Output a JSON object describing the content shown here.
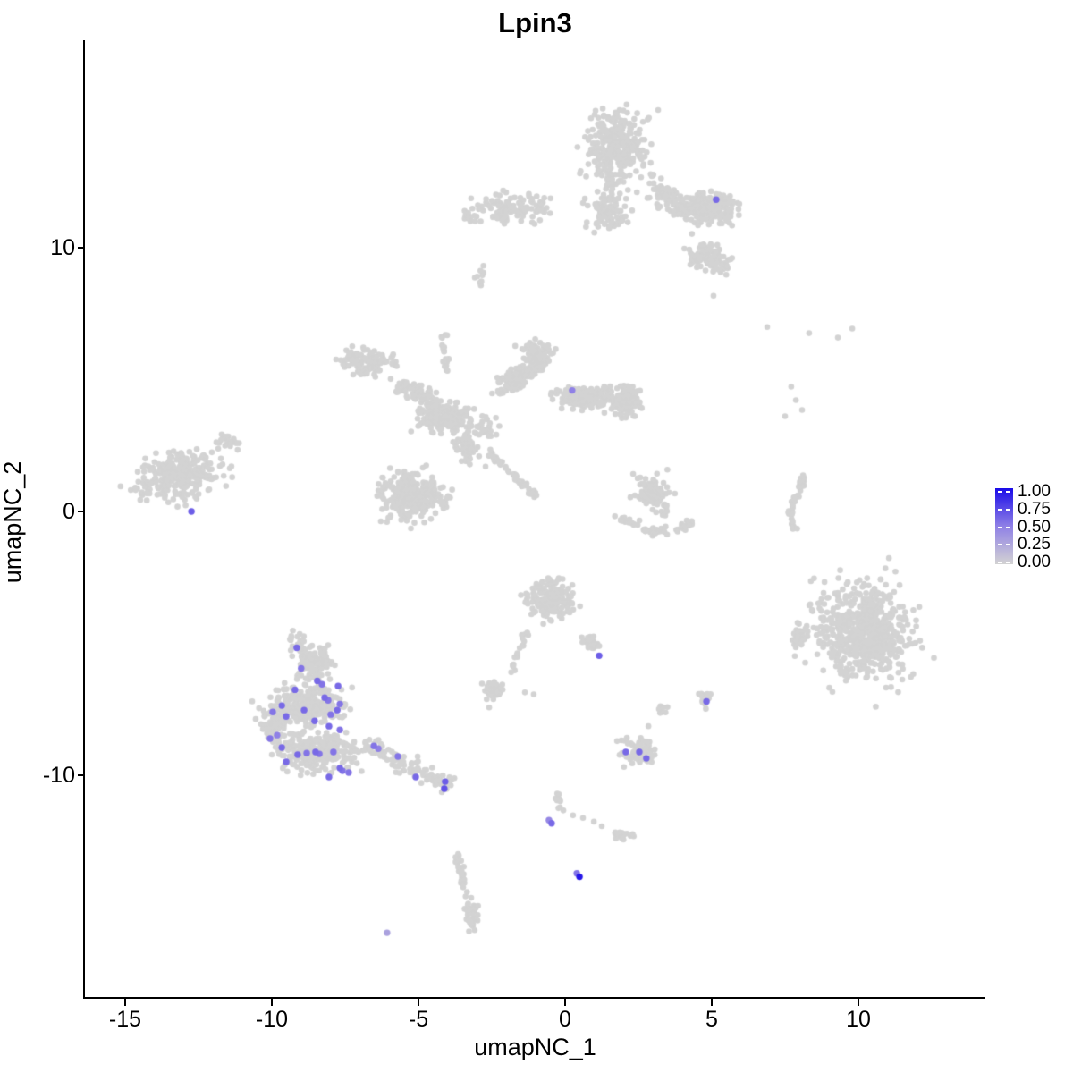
{
  "chart_data": {
    "type": "scatter",
    "title": "Lpin3",
    "xlabel": "umapNC_1",
    "ylabel": "umapNC_2",
    "x_ticks": [
      "-15",
      "-10",
      "-5",
      "0",
      "5",
      "10"
    ],
    "x_tick_values": [
      -15,
      -10,
      -5,
      0,
      5,
      10
    ],
    "y_ticks": [
      "10",
      "0",
      "-10"
    ],
    "y_tick_values": [
      10,
      0,
      -10
    ],
    "xlim": [
      -16.4,
      14.3
    ],
    "ylim": [
      -18.4,
      17.8
    ],
    "grid": false,
    "legend_position": "right",
    "legend": {
      "labels": [
        "1.00",
        "0.75",
        "0.50",
        "0.25",
        "0.00"
      ],
      "values": [
        1.0,
        0.75,
        0.5,
        0.25,
        0.0
      ]
    },
    "colors": {
      "low": "#D3D3D3",
      "mid": "#8F80E6",
      "high": "#1A0BE8",
      "background": "#FFFFFF",
      "axis": "#000000"
    },
    "background_clusters": [
      {
        "cx": 1.77,
        "cy": 13.75,
        "sx": 0.49,
        "sy": 0.68,
        "rot": 0,
        "n": 320
      },
      {
        "cx": 1.46,
        "cy": 11.39,
        "sx": 0.36,
        "sy": 0.34,
        "rot": 0,
        "n": 100
      },
      {
        "cx": -1.74,
        "cy": 11.49,
        "sx": 0.63,
        "sy": 0.29,
        "rot": 0,
        "n": 110
      },
      {
        "cx": -3.23,
        "cy": 11.25,
        "sx": 0.25,
        "sy": 0.2,
        "rot": 0,
        "n": 18
      },
      {
        "cx": 3.75,
        "cy": 11.72,
        "sx": 0.55,
        "sy": 0.22,
        "rot": -35,
        "n": 120
      },
      {
        "cx": 4.97,
        "cy": 11.51,
        "sx": 0.38,
        "sy": 0.28,
        "rot": 0,
        "n": 170
      },
      {
        "cx": 4.91,
        "cy": 9.63,
        "sx": 0.37,
        "sy": 0.27,
        "rot": -25,
        "n": 110
      },
      {
        "cx": -2.87,
        "cy": 8.9,
        "sx": 0.12,
        "sy": 0.2,
        "rot": 0,
        "n": 10
      },
      {
        "cx": -6.77,
        "cy": 5.64,
        "sx": 0.38,
        "sy": 0.26,
        "rot": -15,
        "n": 120
      },
      {
        "cx": -4.94,
        "cy": 4.46,
        "sx": 0.45,
        "sy": 0.18,
        "rot": -28,
        "n": 80
      },
      {
        "cx": -4.18,
        "cy": 3.61,
        "sx": 0.42,
        "sy": 0.28,
        "rot": 0,
        "n": 170
      },
      {
        "cx": -1.59,
        "cy": 5.14,
        "sx": 0.48,
        "sy": 0.2,
        "rot": 32,
        "n": 130
      },
      {
        "cx": -0.98,
        "cy": 6.05,
        "sx": 0.25,
        "sy": 0.2,
        "rot": 0,
        "n": 70
      },
      {
        "cx": 0.7,
        "cy": 4.29,
        "sx": 0.5,
        "sy": 0.2,
        "rot": -8,
        "n": 140
      },
      {
        "cx": 2.07,
        "cy": 4.12,
        "sx": 0.28,
        "sy": 0.3,
        "rot": 0,
        "n": 110
      },
      {
        "cx": -3.41,
        "cy": 2.43,
        "sx": 0.35,
        "sy": 0.16,
        "rot": -62,
        "n": 70
      },
      {
        "cx": -5.18,
        "cy": 0.57,
        "sx": 0.52,
        "sy": 0.45,
        "rot": 0,
        "n": 260
      },
      {
        "cx": -2.8,
        "cy": 3.1,
        "sx": 0.28,
        "sy": 0.2,
        "rot": 0,
        "n": 30
      },
      {
        "cx": -13.02,
        "cy": 1.35,
        "sx": 0.63,
        "sy": 0.45,
        "rot": 15,
        "n": 260
      },
      {
        "cx": -11.49,
        "cy": 2.6,
        "sx": 0.18,
        "sy": 0.15,
        "rot": 0,
        "n": 22
      },
      {
        "cx": -14.47,
        "cy": 0.91,
        "sx": 0.25,
        "sy": 0.2,
        "rot": 0,
        "n": 20
      },
      {
        "cx": 2.99,
        "cy": 0.75,
        "sx": 0.28,
        "sy": 0.3,
        "rot": 0,
        "n": 70
      },
      {
        "cx": 2.16,
        "cy": -0.37,
        "sx": 0.18,
        "sy": 0.08,
        "rot": -25,
        "n": 20
      },
      {
        "cx": 3.08,
        "cy": -0.74,
        "sx": 0.22,
        "sy": 0.08,
        "rot": 0,
        "n": 26
      },
      {
        "cx": 4.05,
        "cy": -0.54,
        "sx": 0.18,
        "sy": 0.08,
        "rot": 30,
        "n": 20
      },
      {
        "cx": 3.14,
        "cy": 0.07,
        "sx": 0.25,
        "sy": 0.15,
        "rot": 0,
        "n": 12
      },
      {
        "cx": 10.24,
        "cy": -4.59,
        "sx": 0.78,
        "sy": 0.85,
        "rot": 0,
        "n": 600
      },
      {
        "cx": 10.24,
        "cy": -4.59,
        "sx": 1.05,
        "sy": 1.1,
        "rot": 0,
        "n": 60
      },
      {
        "cx": 7.96,
        "cy": -4.83,
        "sx": 0.15,
        "sy": 0.3,
        "rot": 0,
        "n": 35
      },
      {
        "cx": -0.52,
        "cy": -3.31,
        "sx": 0.38,
        "sy": 0.33,
        "rot": -35,
        "n": 200
      },
      {
        "cx": 0.85,
        "cy": -5.0,
        "sx": 0.2,
        "sy": 0.1,
        "rot": -42,
        "n": 28
      },
      {
        "cx": -2.44,
        "cy": -6.79,
        "sx": 0.18,
        "sy": 0.15,
        "rot": 0,
        "n": 45
      },
      {
        "cx": 2.44,
        "cy": -9.05,
        "sx": 0.28,
        "sy": 0.25,
        "rot": 0,
        "n": 70
      },
      {
        "cx": 3.29,
        "cy": -7.47,
        "sx": 0.1,
        "sy": 0.1,
        "rot": 0,
        "n": 10
      },
      {
        "cx": 4.82,
        "cy": -7.16,
        "sx": 0.12,
        "sy": 0.13,
        "rot": 0,
        "n": 14
      },
      {
        "cx": -9.1,
        "cy": -4.9,
        "sx": 0.15,
        "sy": 0.18,
        "rot": 0,
        "n": 18
      },
      {
        "cx": -8.6,
        "cy": -5.8,
        "sx": 0.35,
        "sy": 0.3,
        "rot": 0,
        "n": 110
      },
      {
        "cx": -8.75,
        "cy": -7.36,
        "sx": 0.55,
        "sy": 0.38,
        "rot": 0,
        "n": 280
      },
      {
        "cx": -8.45,
        "cy": -9.12,
        "sx": 0.65,
        "sy": 0.33,
        "rot": 0,
        "n": 280
      },
      {
        "cx": -9.9,
        "cy": -8.0,
        "sx": 0.22,
        "sy": 0.33,
        "rot": 0,
        "n": 70
      },
      {
        "cx": 1.92,
        "cy": -12.26,
        "sx": 0.18,
        "sy": 0.1,
        "rot": 0,
        "n": 20
      },
      {
        "cx": -3.2,
        "cy": -15.3,
        "sx": 0.15,
        "sy": 0.3,
        "rot": 0,
        "n": 20
      }
    ],
    "background_strands": [
      {
        "x1": -4.12,
        "y1": 6.72,
        "x2": -4.02,
        "y2": 5.3,
        "jitter": 0.08,
        "n": 20
      },
      {
        "x1": -2.65,
        "y1": 2.26,
        "x2": -0.98,
        "y2": 0.57,
        "jitter": 0.05,
        "n": 55
      },
      {
        "x1": 8.17,
        "y1": 1.32,
        "x2": 7.68,
        "y2": 0.07,
        "jitter": 0.06,
        "n": 30
      },
      {
        "x1": 7.68,
        "y1": 0.07,
        "x2": 7.8,
        "y2": -0.68,
        "jitter": 0.05,
        "n": 18
      },
      {
        "x1": -1.28,
        "y1": -4.56,
        "x2": -1.86,
        "y2": -6.18,
        "jitter": 0.07,
        "n": 22
      },
      {
        "x1": -7.0,
        "y1": -8.8,
        "x2": -3.9,
        "y2": -10.41,
        "jitter": 0.18,
        "n": 110
      },
      {
        "x1": -3.66,
        "y1": -13.04,
        "x2": -3.11,
        "y2": -15.81,
        "jitter": 0.07,
        "n": 45
      },
      {
        "x1": -0.27,
        "y1": -10.74,
        "x2": -0.15,
        "y2": -11.49,
        "jitter": 0.05,
        "n": 10
      }
    ],
    "background_singles": [
      [
        6.89,
        6.99
      ],
      [
        8.32,
        6.76
      ],
      [
        9.3,
        6.59
      ],
      [
        9.79,
        6.93
      ],
      [
        7.71,
        4.73
      ],
      [
        7.87,
        4.22
      ],
      [
        8.08,
        3.85
      ],
      [
        7.5,
        3.61
      ],
      [
        8.38,
        -2.64
      ],
      [
        5.06,
        8.18
      ],
      [
        2.84,
        -8.14
      ],
      [
        2.32,
        1.42
      ],
      [
        -1.37,
        -6.86
      ],
      [
        -1.07,
        -6.93
      ],
      [
        -2.59,
        -7.43
      ],
      [
        0.27,
        -11.52
      ],
      [
        0.61,
        -11.62
      ],
      [
        0.98,
        -11.76
      ],
      [
        1.25,
        -11.93
      ],
      [
        -10.67,
        -7.2
      ],
      [
        -10.55,
        -7.87
      ]
    ],
    "expressing_cells": [
      {
        "x": -9.15,
        "y": -5.17,
        "v": 0.6
      },
      {
        "x": -9.0,
        "y": -5.95,
        "v": 0.55
      },
      {
        "x": -9.21,
        "y": -6.76,
        "v": 0.6
      },
      {
        "x": -8.45,
        "y": -6.42,
        "v": 0.6
      },
      {
        "x": -8.29,
        "y": -6.55,
        "v": 0.55
      },
      {
        "x": -7.74,
        "y": -6.62,
        "v": 0.6
      },
      {
        "x": -8.2,
        "y": -7.06,
        "v": 0.6
      },
      {
        "x": -8.08,
        "y": -7.16,
        "v": 0.55
      },
      {
        "x": -7.68,
        "y": -7.3,
        "v": 0.55
      },
      {
        "x": -9.66,
        "y": -7.36,
        "v": 0.6
      },
      {
        "x": -9.97,
        "y": -7.6,
        "v": 0.55
      },
      {
        "x": -9.51,
        "y": -7.77,
        "v": 0.6
      },
      {
        "x": -8.9,
        "y": -7.53,
        "v": 0.6
      },
      {
        "x": -8.54,
        "y": -7.94,
        "v": 0.6
      },
      {
        "x": -7.99,
        "y": -7.7,
        "v": 0.55
      },
      {
        "x": -7.77,
        "y": -7.53,
        "v": 0.6
      },
      {
        "x": -8.05,
        "y": -8.14,
        "v": 0.6
      },
      {
        "x": -7.68,
        "y": -8.28,
        "v": 0.55
      },
      {
        "x": -10.06,
        "y": -8.61,
        "v": 0.55
      },
      {
        "x": -9.82,
        "y": -8.48,
        "v": 0.5
      },
      {
        "x": -9.66,
        "y": -8.95,
        "v": 0.6
      },
      {
        "x": -9.12,
        "y": -9.22,
        "v": 0.6
      },
      {
        "x": -8.81,
        "y": -9.16,
        "v": 0.55
      },
      {
        "x": -8.51,
        "y": -9.12,
        "v": 0.6
      },
      {
        "x": -8.38,
        "y": -9.19,
        "v": 0.55
      },
      {
        "x": -7.9,
        "y": -9.12,
        "v": 0.55
      },
      {
        "x": -9.51,
        "y": -9.49,
        "v": 0.6
      },
      {
        "x": -7.68,
        "y": -9.73,
        "v": 0.6
      },
      {
        "x": -7.59,
        "y": -9.83,
        "v": 0.55
      },
      {
        "x": -8.05,
        "y": -10.07,
        "v": 0.6
      },
      {
        "x": -7.38,
        "y": -9.9,
        "v": 0.55
      },
      {
        "x": -6.52,
        "y": -8.89,
        "v": 0.55
      },
      {
        "x": -6.37,
        "y": -8.99,
        "v": 0.5
      },
      {
        "x": -5.7,
        "y": -9.29,
        "v": 0.55
      },
      {
        "x": -5.09,
        "y": -10.07,
        "v": 0.6
      },
      {
        "x": -4.09,
        "y": -10.24,
        "v": 0.65
      },
      {
        "x": -4.12,
        "y": -10.51,
        "v": 0.7
      },
      {
        "x": 5.15,
        "y": 11.82,
        "v": 0.6
      },
      {
        "x": 0.24,
        "y": 4.59,
        "v": 0.5
      },
      {
        "x": -12.74,
        "y": 0.0,
        "v": 0.65
      },
      {
        "x": 4.82,
        "y": -7.2,
        "v": 0.6
      },
      {
        "x": 2.07,
        "y": -9.12,
        "v": 0.6
      },
      {
        "x": 2.53,
        "y": -9.12,
        "v": 0.6
      },
      {
        "x": 2.77,
        "y": -9.36,
        "v": 0.6
      },
      {
        "x": 1.16,
        "y": -5.47,
        "v": 0.65
      },
      {
        "x": -0.46,
        "y": -11.82,
        "v": 0.6
      },
      {
        "x": -0.55,
        "y": -11.7,
        "v": 0.45
      },
      {
        "x": 0.49,
        "y": -13.85,
        "v": 0.95
      },
      {
        "x": 0.4,
        "y": -13.72,
        "v": 0.55
      },
      {
        "x": -6.07,
        "y": -15.97,
        "v": 0.3
      }
    ]
  }
}
